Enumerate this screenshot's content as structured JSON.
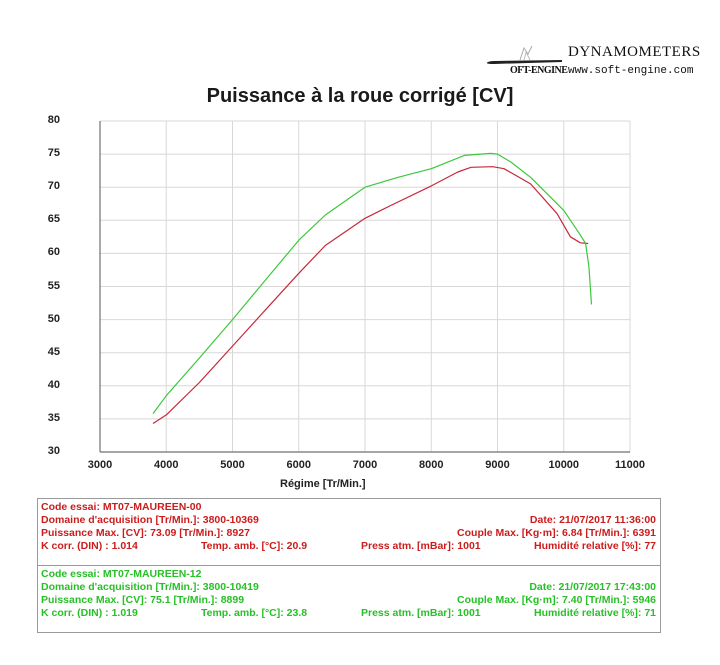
{
  "logo": {
    "title": "DYNAMOMETERS",
    "brand": "OFT-ENGINE",
    "url": "www.soft-engine.com",
    "icon": "soft-engine-swoosh-logo-icon"
  },
  "chart_data": {
    "type": "line",
    "title": "Puissance à la roue corrigé [CV]",
    "xlabel": "Régime [Tr/Min.]",
    "ylabel": "",
    "xlim": [
      3000,
      11000
    ],
    "ylim": [
      30,
      80
    ],
    "x_ticks": [
      "3000",
      "4000",
      "5000",
      "6000",
      "7000",
      "8000",
      "9000",
      "10000",
      "11000"
    ],
    "y_ticks": [
      "80",
      "75",
      "70",
      "65",
      "60",
      "55",
      "50",
      "45",
      "40",
      "35",
      "30"
    ],
    "grid": true,
    "legend": "none (series identified by colored info blocks below chart)",
    "series": [
      {
        "name": "MT07-MAUREEN-00",
        "color": "#c8283c",
        "points": [
          [
            3800,
            34.3
          ],
          [
            4000,
            35.6
          ],
          [
            4500,
            40.5
          ],
          [
            5000,
            46.0
          ],
          [
            5500,
            51.5
          ],
          [
            6000,
            57.0
          ],
          [
            6400,
            61.2
          ],
          [
            7000,
            65.3
          ],
          [
            7400,
            67.3
          ],
          [
            8000,
            70.2
          ],
          [
            8400,
            72.3
          ],
          [
            8600,
            73.0
          ],
          [
            8927,
            73.09
          ],
          [
            9100,
            72.8
          ],
          [
            9500,
            70.5
          ],
          [
            9900,
            66.0
          ],
          [
            10100,
            62.5
          ],
          [
            10250,
            61.6
          ],
          [
            10369,
            61.5
          ]
        ]
      },
      {
        "name": "MT07-MAUREEN-12",
        "color": "#3cc83c",
        "points": [
          [
            3800,
            35.8
          ],
          [
            4000,
            38.5
          ],
          [
            4500,
            44.2
          ],
          [
            5000,
            50.0
          ],
          [
            5500,
            56.0
          ],
          [
            6000,
            62.0
          ],
          [
            6400,
            65.8
          ],
          [
            7000,
            70.0
          ],
          [
            7500,
            71.5
          ],
          [
            8000,
            72.8
          ],
          [
            8500,
            74.8
          ],
          [
            8899,
            75.1
          ],
          [
            9000,
            75.0
          ],
          [
            9200,
            73.8
          ],
          [
            9500,
            71.5
          ],
          [
            10000,
            66.5
          ],
          [
            10250,
            62.8
          ],
          [
            10330,
            61.5
          ],
          [
            10380,
            58.0
          ],
          [
            10419,
            52.3
          ]
        ]
      }
    ]
  },
  "info": {
    "runs": [
      {
        "color": "#cc1c1c",
        "code": "Code essai: MT07-MAUREEN-00",
        "domain": "Domaine d'acquisition [Tr/Min.]: 3800-10369",
        "date": "Date: 21/07/2017   11:36:00",
        "power": "Puissance Max. [CV]: 73.09   [Tr/Min.]: 8927",
        "torque": "Couple Max. [Kg·m]: 6.84   [Tr/Min.]: 6391",
        "kcorr": "K corr. (DIN) : 1.014",
        "temp": "Temp. amb. [°C]: 20.9",
        "press": "Press atm. [mBar]: 1001",
        "humidity": "Humidité relative [%]: 77"
      },
      {
        "color": "#27c027",
        "code": "Code essai: MT07-MAUREEN-12",
        "domain": "Domaine d'acquisition [Tr/Min.]: 3800-10419",
        "date": "Date: 21/07/2017   17:43:00",
        "power": "Puissance Max. [CV]: 75.1   [Tr/Min.]: 8899",
        "torque": "Couple Max. [Kg·m]: 7.40   [Tr/Min.]: 5946",
        "kcorr": "K corr. (DIN) : 1.019",
        "temp": "Temp. amb. [°C]: 23.8",
        "press": "Press atm. [mBar]: 1001",
        "humidity": "Humidité relative [%]: 71"
      }
    ]
  }
}
